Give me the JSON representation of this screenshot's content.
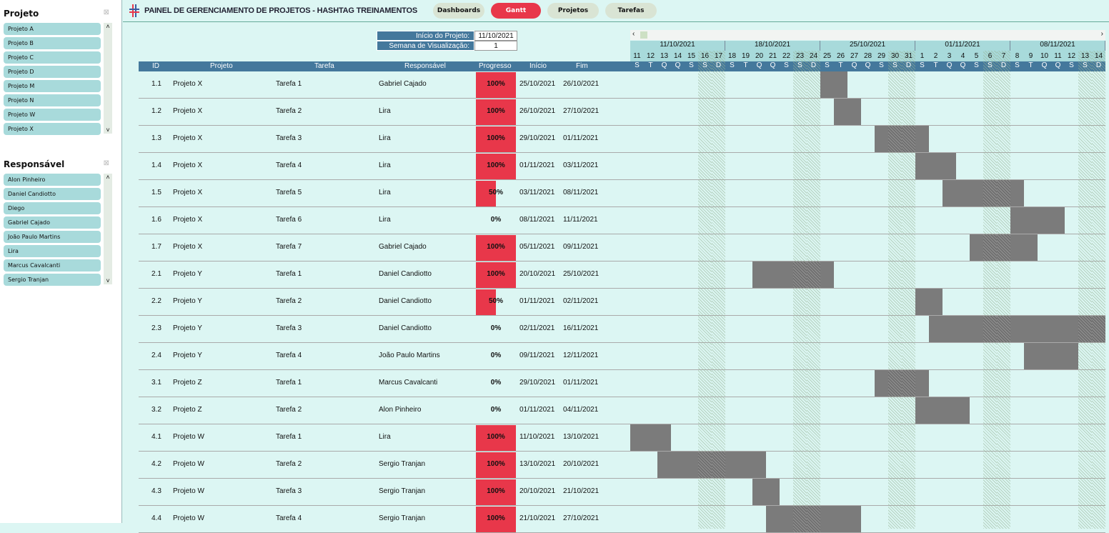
{
  "slicers": [
    {
      "title": "Projeto",
      "items": [
        "Projeto A",
        "Projeto B",
        "Projeto C",
        "Projeto D",
        "Projeto M",
        "Projeto N",
        "Projeto W",
        "Projeto X"
      ]
    },
    {
      "title": "Responsável",
      "items": [
        "Alon Pinheiro",
        "Daniel Candiotto",
        "Diego",
        "Gabriel Cajado",
        "João Paulo Martins",
        "Lira",
        "Marcus Cavalcanti",
        "Sergio Tranjan"
      ]
    }
  ],
  "header": {
    "title": "PAINEL DE GERENCIAMENTO DE PROJETOS - HASHTAG TREINAMENTOS",
    "nav": [
      {
        "label": "Dashboards",
        "active": false
      },
      {
        "label": "Gantt",
        "active": true
      },
      {
        "label": "Projetos",
        "active": false
      },
      {
        "label": "Tarefas",
        "active": false
      }
    ]
  },
  "info": {
    "start_label": "Início do Projeto:",
    "start_value": "11/10/2021",
    "week_label": "Semana de Visualização:",
    "week_value": "1"
  },
  "columns": [
    "ID",
    "Projeto",
    "Tarefa",
    "Responsável",
    "Progresso",
    "Início",
    "Fim"
  ],
  "gantt": {
    "weeks": [
      "11/10/2021",
      "18/10/2021",
      "25/10/2021",
      "01/11/2021",
      "08/11/2021"
    ],
    "days": [
      "11",
      "12",
      "13",
      "14",
      "15",
      "16",
      "17",
      "18",
      "19",
      "20",
      "21",
      "22",
      "23",
      "24",
      "25",
      "26",
      "27",
      "28",
      "29",
      "30",
      "31",
      "1",
      "2",
      "3",
      "4",
      "5",
      "6",
      "7",
      "8",
      "9",
      "10",
      "11",
      "12",
      "13",
      "14"
    ],
    "weekday_letters": [
      "S",
      "T",
      "Q",
      "Q",
      "S",
      "S",
      "D"
    ],
    "start": "11/10/2021",
    "bar_color": "#7b7b7b"
  },
  "colors": {
    "accent": "#e8374a",
    "header": "#44789c",
    "background": "#dcf6f3"
  },
  "tasks": [
    {
      "id": "1.1",
      "projeto": "Projeto X",
      "tarefa": "Tarefa 1",
      "resp": "Gabriel Cajado",
      "prog": "100%",
      "ini": "25/10/2021",
      "fim": "26/10/2021"
    },
    {
      "id": "1.2",
      "projeto": "Projeto X",
      "tarefa": "Tarefa 2",
      "resp": "Lira",
      "prog": "100%",
      "ini": "26/10/2021",
      "fim": "27/10/2021"
    },
    {
      "id": "1.3",
      "projeto": "Projeto X",
      "tarefa": "Tarefa 3",
      "resp": "Lira",
      "prog": "100%",
      "ini": "29/10/2021",
      "fim": "01/11/2021"
    },
    {
      "id": "1.4",
      "projeto": "Projeto X",
      "tarefa": "Tarefa 4",
      "resp": "Lira",
      "prog": "100%",
      "ini": "01/11/2021",
      "fim": "03/11/2021"
    },
    {
      "id": "1.5",
      "projeto": "Projeto X",
      "tarefa": "Tarefa 5",
      "resp": "Lira",
      "prog": "50%",
      "ini": "03/11/2021",
      "fim": "08/11/2021"
    },
    {
      "id": "1.6",
      "projeto": "Projeto X",
      "tarefa": "Tarefa 6",
      "resp": "Lira",
      "prog": "0%",
      "ini": "08/11/2021",
      "fim": "11/11/2021"
    },
    {
      "id": "1.7",
      "projeto": "Projeto X",
      "tarefa": "Tarefa 7",
      "resp": "Gabriel Cajado",
      "prog": "100%",
      "ini": "05/11/2021",
      "fim": "09/11/2021"
    },
    {
      "id": "2.1",
      "projeto": "Projeto Y",
      "tarefa": "Tarefa 1",
      "resp": "Daniel Candiotto",
      "prog": "100%",
      "ini": "20/10/2021",
      "fim": "25/10/2021"
    },
    {
      "id": "2.2",
      "projeto": "Projeto Y",
      "tarefa": "Tarefa 2",
      "resp": "Daniel Candiotto",
      "prog": "50%",
      "ini": "01/11/2021",
      "fim": "02/11/2021"
    },
    {
      "id": "2.3",
      "projeto": "Projeto Y",
      "tarefa": "Tarefa 3",
      "resp": "Daniel Candiotto",
      "prog": "0%",
      "ini": "02/11/2021",
      "fim": "16/11/2021"
    },
    {
      "id": "2.4",
      "projeto": "Projeto Y",
      "tarefa": "Tarefa 4",
      "resp": "João Paulo Martins",
      "prog": "0%",
      "ini": "09/11/2021",
      "fim": "12/11/2021"
    },
    {
      "id": "3.1",
      "projeto": "Projeto Z",
      "tarefa": "Tarefa 1",
      "resp": "Marcus Cavalcanti",
      "prog": "0%",
      "ini": "29/10/2021",
      "fim": "01/11/2021"
    },
    {
      "id": "3.2",
      "projeto": "Projeto Z",
      "tarefa": "Tarefa 2",
      "resp": "Alon Pinheiro",
      "prog": "0%",
      "ini": "01/11/2021",
      "fim": "04/11/2021"
    },
    {
      "id": "4.1",
      "projeto": "Projeto W",
      "tarefa": "Tarefa 1",
      "resp": "Lira",
      "prog": "100%",
      "ini": "11/10/2021",
      "fim": "13/10/2021"
    },
    {
      "id": "4.2",
      "projeto": "Projeto W",
      "tarefa": "Tarefa 2",
      "resp": "Sergio Tranjan",
      "prog": "100%",
      "ini": "13/10/2021",
      "fim": "20/10/2021"
    },
    {
      "id": "4.3",
      "projeto": "Projeto W",
      "tarefa": "Tarefa 3",
      "resp": "Sergio Tranjan",
      "prog": "100%",
      "ini": "20/10/2021",
      "fim": "21/10/2021"
    },
    {
      "id": "4.4",
      "projeto": "Projeto W",
      "tarefa": "Tarefa 4",
      "resp": "Sergio Tranjan",
      "prog": "100%",
      "ini": "21/10/2021",
      "fim": "27/10/2021"
    }
  ]
}
